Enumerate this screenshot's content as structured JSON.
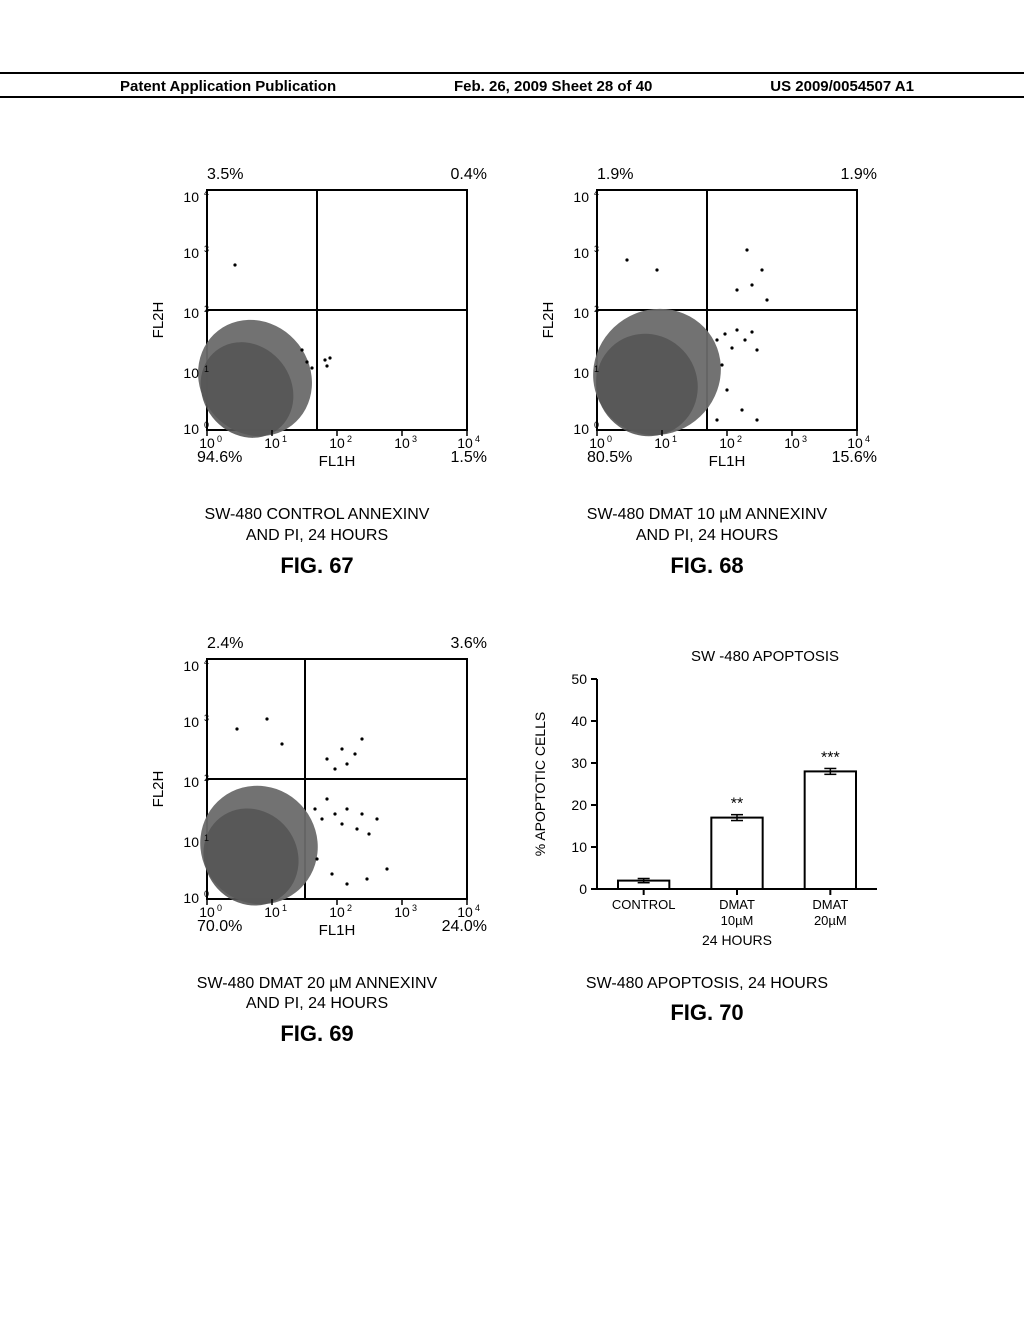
{
  "header": {
    "left": "Patent Application Publication",
    "center": "Feb. 26, 2009  Sheet 28 of 40",
    "right": "US 2009/0054507 A1"
  },
  "figures": {
    "fig67": {
      "type": "scatter-quadrant",
      "quad_ul": "3.5%",
      "quad_ur": "0.4%",
      "quad_ll": "94.6%",
      "quad_lr": "1.5%",
      "ylabel": "FL2H",
      "xlabel": "FL1H",
      "x_ticks": [
        "10⁰",
        "10¹",
        "10²",
        "10³",
        "10⁴"
      ],
      "y_ticks": [
        "10⁰",
        "10¹",
        "10²",
        "10³",
        "10⁴"
      ],
      "vline_at": 1.7,
      "hline_at": 2.0,
      "caption_l1": "SW-480 CONTROL ANNEXINV",
      "caption_l2": "AND PI, 24 HOURS",
      "fig_label": "FIG. 67",
      "plot_bg": "#ffffff",
      "axis_color": "#000000",
      "cloud_color": "#6a6a6a"
    },
    "fig68": {
      "type": "scatter-quadrant",
      "quad_ul": "1.9%",
      "quad_ur": "1.9%",
      "quad_ll": "80.5%",
      "quad_lr": "15.6%",
      "ylabel": "FL2H",
      "xlabel": "FL1H",
      "x_ticks": [
        "10⁰",
        "10¹",
        "10²",
        "10³",
        "10⁴"
      ],
      "y_ticks": [
        "10⁰",
        "10¹",
        "10²",
        "10³",
        "10⁴"
      ],
      "vline_at": 1.7,
      "hline_at": 2.0,
      "caption_l1": "SW-480 DMAT 10 µM ANNEXINV",
      "caption_l2": "AND PI, 24 HOURS",
      "fig_label": "FIG. 68",
      "plot_bg": "#ffffff",
      "axis_color": "#000000",
      "cloud_color": "#6a6a6a"
    },
    "fig69": {
      "type": "scatter-quadrant",
      "quad_ul": "2.4%",
      "quad_ur": "3.6%",
      "quad_ll": "70.0%",
      "quad_lr": "24.0%",
      "ylabel": "FL2H",
      "xlabel": "FL1H",
      "x_ticks": [
        "10⁰",
        "10¹",
        "10²",
        "10³",
        "10⁴"
      ],
      "y_ticks": [
        "10⁰",
        "10¹",
        "10²",
        "10³",
        "10⁴"
      ],
      "vline_at": 1.5,
      "hline_at": 2.0,
      "caption_l1": "SW-480 DMAT 20 µM ANNEXINV",
      "caption_l2": "AND PI, 24 HOURS",
      "fig_label": "FIG. 69",
      "plot_bg": "#ffffff",
      "axis_color": "#000000",
      "cloud_color": "#6a6a6a"
    },
    "fig70": {
      "type": "bar",
      "title": "SW -480 APOPTOSIS",
      "ylabel": "% APOPTOTIC CELLS",
      "ylim": [
        0,
        50
      ],
      "ytick_step": 10,
      "categories": [
        "CONTROL",
        "DMAT 10µM",
        "DMAT 20µM"
      ],
      "cat_lines": [
        [
          "CONTROL"
        ],
        [
          "DMAT",
          "10µM"
        ],
        [
          "DMAT",
          "20µM"
        ]
      ],
      "values": [
        2,
        17,
        28
      ],
      "errors": [
        0.5,
        0.7,
        0.7
      ],
      "sig_marks": [
        "",
        "**",
        "***"
      ],
      "bar_fill": "#ffffff",
      "bar_stroke": "#000000",
      "bar_width": 0.55,
      "axis_color": "#000000",
      "x_group_label": "24 HOURS",
      "caption": "SW-480 APOPTOSIS, 24 HOURS",
      "fig_label": "FIG. 70",
      "title_fontsize": 15,
      "label_fontsize": 14
    }
  }
}
